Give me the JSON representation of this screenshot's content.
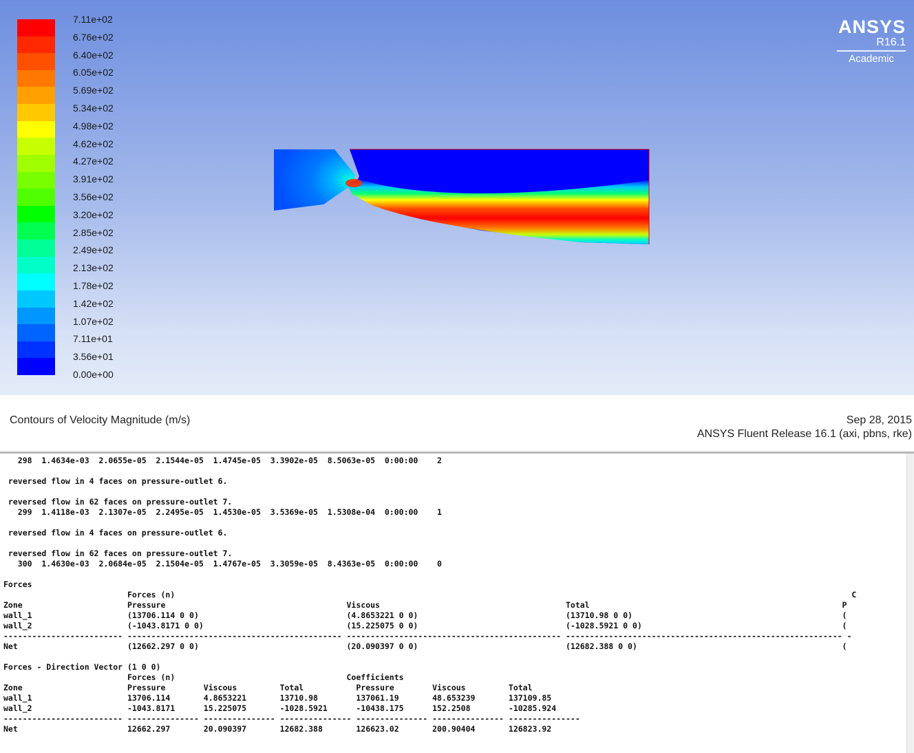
{
  "colorbar": {
    "labels": [
      "7.11e+02",
      "6.76e+02",
      "6.40e+02",
      "6.05e+02",
      "5.69e+02",
      "5.34e+02",
      "4.98e+02",
      "4.62e+02",
      "4.27e+02",
      "3.91e+02",
      "3.56e+02",
      "3.20e+02",
      "2.85e+02",
      "2.49e+02",
      "2.13e+02",
      "1.78e+02",
      "1.42e+02",
      "1.07e+02",
      "7.11e+01",
      "3.56e+01",
      "0.00e+00"
    ],
    "colors": [
      "#ff0000",
      "#ff2800",
      "#ff5000",
      "#ff7800",
      "#ffa000",
      "#ffc800",
      "#ffff00",
      "#c8ff00",
      "#a0ff00",
      "#78ff00",
      "#50ff00",
      "#00ff00",
      "#00ff50",
      "#00ff96",
      "#00ffc8",
      "#00ffff",
      "#00c8ff",
      "#0096ff",
      "#0064ff",
      "#0032ff",
      "#0000ff"
    ]
  },
  "logo": {
    "brand": "ANSYS",
    "version": "R16.1",
    "edition": "Academic"
  },
  "caption": {
    "title": "Contours of Velocity Magnitude (m/s)",
    "date": "Sep 28, 2015",
    "release": "ANSYS Fluent Release 16.1 (axi, pbns, rke)"
  },
  "console": {
    "lines": [
      "   298  1.4634e-03  2.0655e-05  2.1544e-05  1.4745e-05  3.3902e-05  8.5063e-05  0:00:00    2",
      "",
      " reversed flow in 4 faces on pressure-outlet 6.",
      "",
      " reversed flow in 62 faces on pressure-outlet 7.",
      "   299  1.4118e-03  2.1307e-05  2.2495e-05  1.4530e-05  3.5369e-05  1.5308e-04  0:00:00    1",
      "",
      " reversed flow in 4 faces on pressure-outlet 6.",
      "",
      " reversed flow in 62 faces on pressure-outlet 7.",
      "   300  1.4630e-03  2.0684e-05  2.1504e-05  1.4767e-05  3.3059e-05  8.4363e-05  0:00:00    0",
      "",
      "Forces",
      "                          Forces (n)                                                                                                                                              C",
      "Zone                      Pressure                                      Viscous                                       Total                                                     P",
      "wall_1                    (13706.114 0 0)                               (4.8653221 0 0)                               (13710.98 0 0)                                            (",
      "wall_2                    (-1043.8171 0 0)                              (15.225075 0 0)                               (-1028.5921 0 0)                                          (",
      "------------------------- --------------------------------------------- --------------------------------------------- ---------------------------------------------------------- -",
      "Net                       (12662.297 0 0)                               (20.090397 0 0)                               (12682.388 0 0)                                           (",
      "",
      "Forces - Direction Vector (1 0 0)",
      "                          Forces (n)                                    Coefficients",
      "Zone                      Pressure        Viscous         Total           Pressure        Viscous         Total",
      "wall_1                    13706.114       4.8653221       13710.98        137061.19       48.653239       137109.85",
      "wall_2                    -1043.8171      15.225075       -1028.5921      -10438.175      152.2508        -10285.924",
      "------------------------- --------------- --------------- --------------- --------------- --------------- ---------------",
      "Net                       12662.297       20.090397       12682.388       126623.02       200.90404       126823.92"
    ]
  }
}
